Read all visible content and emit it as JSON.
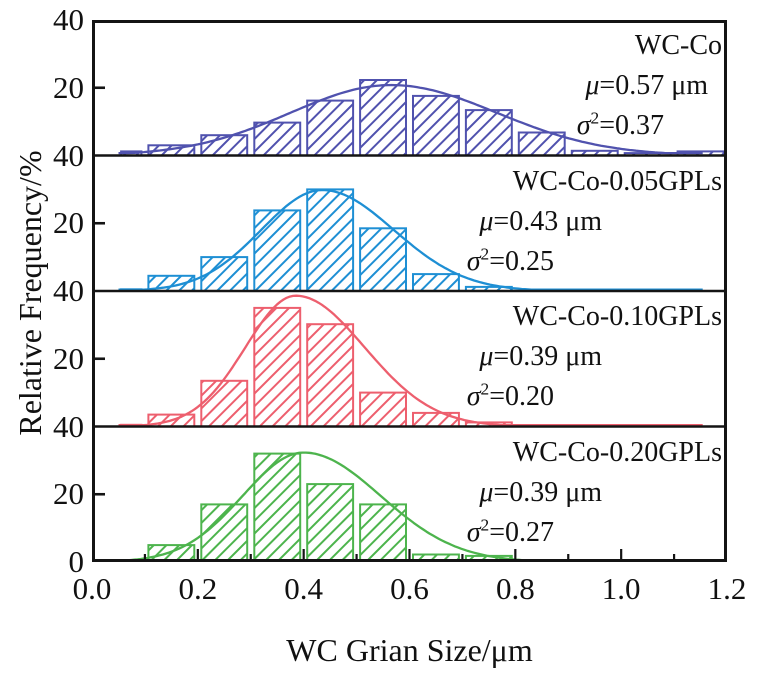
{
  "figure": {
    "y_axis_label": "Relative Frequency/%",
    "x_axis_label": "WC Grian Size/μm",
    "x_ticks": [
      "0.0",
      "0.2",
      "0.4",
      "0.6",
      "0.8",
      "1.0",
      "1.2"
    ],
    "y_ticks": [
      "40",
      "20",
      "0"
    ],
    "axis_color": "#141414"
  },
  "chart_data": {
    "type": "bar",
    "subtype": "stacked-panel-histograms-with-fit-curves",
    "xlabel": "WC Grian Size/μm",
    "ylabel": "Relative Frequency/%",
    "x_range": [
      0,
      1.2
    ],
    "panel_ylim": [
      0,
      40
    ],
    "bin_width": 0.1,
    "bin_centers": [
      0.05,
      0.15,
      0.25,
      0.35,
      0.45,
      0.55,
      0.65,
      0.75,
      0.85,
      0.95,
      1.05,
      1.15
    ],
    "grid": false,
    "legend": "none",
    "series": [
      {
        "name": "WC-Co",
        "mu": 0.57,
        "sigma2": 0.37,
        "mu_sym": "μ",
        "mu_val": "=0.57 μm",
        "sigma_sym": "σ",
        "sigma_exp": "2",
        "sigma_val": "=0.37",
        "color": "#5052ae",
        "values": [
          1.2,
          3,
          6,
          9.7,
          16.2,
          22.3,
          17.6,
          13.4,
          6.8,
          1.4,
          0.7,
          1.2
        ],
        "curve": {
          "peak": 20.8,
          "mode": 0.565,
          "sl": 0.19,
          "sr": 0.2,
          "floor": 0.7
        }
      },
      {
        "name": "WC-Co-0.05GPLs",
        "mu": 0.43,
        "sigma2": 0.25,
        "mu_sym": "μ",
        "mu_val": "=0.43 μm",
        "sigma_sym": "σ",
        "sigma_exp": "2",
        "sigma_val": "=0.25",
        "color": "#1e8fd4",
        "values": [
          0.5,
          4.5,
          10,
          23.8,
          30,
          18.5,
          5,
          1.2,
          0,
          0,
          0,
          0
        ],
        "curve": {
          "peak": 29.8,
          "mode": 0.435,
          "sl": 0.115,
          "sr": 0.135,
          "floor": 0.4
        }
      },
      {
        "name": "WC-Co-0.10GPLs",
        "mu": 0.39,
        "sigma2": 0.2,
        "mu_sym": "μ",
        "mu_val": "=0.39 μm",
        "sigma_sym": "σ",
        "sigma_exp": "2",
        "sigma_val": "=0.20",
        "color": "#ed5f6e",
        "values": [
          0.5,
          3.5,
          13.5,
          35,
          30.2,
          10,
          4,
          1.2,
          0,
          0,
          0,
          0
        ],
        "curve": {
          "peak": 38.6,
          "mode": 0.385,
          "sl": 0.095,
          "sr": 0.13,
          "floor": 0.4
        }
      },
      {
        "name": "WC-Co-0.20GPLs",
        "mu": 0.39,
        "sigma2": 0.27,
        "mu_sym": "μ",
        "mu_val": "=0.39 μm",
        "sigma_sym": "σ",
        "sigma_exp": "2",
        "sigma_val": "=0.27",
        "color": "#4db44d",
        "values": [
          0.6,
          5,
          17,
          32,
          23,
          17,
          2.2,
          1.8,
          0,
          0,
          0,
          0
        ],
        "curve": {
          "peak": 32.3,
          "mode": 0.4,
          "sl": 0.115,
          "sr": 0.145,
          "floor": 0.4
        }
      }
    ]
  }
}
